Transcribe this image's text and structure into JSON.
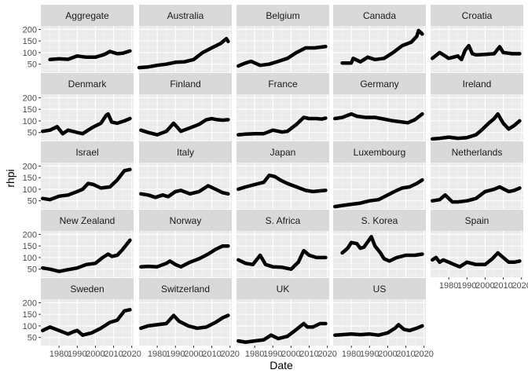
{
  "chart_data": {
    "type": "line",
    "xlabel": "Date",
    "ylabel": "rhpi",
    "xlim": [
      1970,
      2021
    ],
    "ylim": [
      15,
      215
    ],
    "x_ticks": [
      1980,
      1990,
      2000,
      2010,
      2020
    ],
    "x_tick_labels": [
      "1980",
      "1990",
      "2000",
      "2010",
      "2020"
    ],
    "y_ticks": [
      50,
      100,
      150,
      200
    ],
    "y_tick_labels": [
      "50",
      "100",
      "150",
      "200"
    ],
    "facet_layout": {
      "ncol": 5,
      "nrow": 5
    },
    "grid": true,
    "panel_background": "#ebebeb",
    "strip_background": "#d9d9d9",
    "line_color": "#000000",
    "series": [
      {
        "name": "Aggregate",
        "x": [
          1975,
          1980,
          1985,
          1990,
          1995,
          2000,
          2005,
          2008,
          2012,
          2015,
          2019
        ],
        "y": [
          70,
          73,
          71,
          85,
          80,
          80,
          92,
          105,
          95,
          97,
          107
        ]
      },
      {
        "name": "Australia",
        "x": [
          1970,
          1975,
          1980,
          1985,
          1990,
          1995,
          2000,
          2005,
          2010,
          2015,
          2018,
          2019
        ],
        "y": [
          35,
          38,
          45,
          50,
          58,
          60,
          70,
          100,
          120,
          140,
          160,
          148
        ]
      },
      {
        "name": "Belgium",
        "x": [
          1971,
          1975,
          1978,
          1983,
          1988,
          1993,
          1998,
          2003,
          2008,
          2013,
          2018,
          2019
        ],
        "y": [
          42,
          55,
          62,
          45,
          50,
          62,
          75,
          100,
          120,
          120,
          125,
          126
        ]
      },
      {
        "name": "Canada",
        "x": [
          1975,
          1980,
          1981,
          1985,
          1987,
          1989,
          1993,
          1998,
          2003,
          2008,
          2013,
          2016,
          2017,
          2019
        ],
        "y": [
          55,
          55,
          75,
          60,
          70,
          80,
          70,
          75,
          100,
          130,
          145,
          170,
          195,
          180
        ]
      },
      {
        "name": "Croatia",
        "x": [
          1971,
          1975,
          1980,
          1985,
          1987,
          1989,
          1991,
          1993,
          1995,
          2000,
          2005,
          2008,
          2010,
          2015,
          2019
        ],
        "y": [
          75,
          100,
          75,
          85,
          70,
          110,
          130,
          95,
          90,
          92,
          95,
          125,
          100,
          95,
          95
        ]
      },
      {
        "name": "Denmark",
        "x": [
          1971,
          1975,
          1979,
          1982,
          1985,
          1990,
          1993,
          1998,
          2003,
          2006,
          2007,
          2009,
          2012,
          2016,
          2019
        ],
        "y": [
          55,
          60,
          75,
          45,
          60,
          50,
          45,
          70,
          90,
          125,
          130,
          95,
          90,
          100,
          110
        ]
      },
      {
        "name": "Finland",
        "x": [
          1971,
          1975,
          1980,
          1985,
          1989,
          1993,
          1998,
          2003,
          2007,
          2010,
          2013,
          2016,
          2019
        ],
        "y": [
          60,
          50,
          40,
          55,
          90,
          55,
          70,
          85,
          105,
          110,
          105,
          103,
          105
        ]
      },
      {
        "name": "France",
        "x": [
          1971,
          1975,
          1980,
          1985,
          1990,
          1995,
          1998,
          2003,
          2007,
          2010,
          2014,
          2017,
          2019
        ],
        "y": [
          40,
          43,
          45,
          45,
          60,
          52,
          55,
          85,
          115,
          110,
          110,
          108,
          112
        ]
      },
      {
        "name": "Germany",
        "x": [
          1971,
          1975,
          1980,
          1983,
          1988,
          1993,
          1998,
          2003,
          2008,
          2011,
          2015,
          2019
        ],
        "y": [
          110,
          115,
          130,
          120,
          115,
          115,
          108,
          100,
          95,
          92,
          105,
          130
        ]
      },
      {
        "name": "Ireland",
        "x": [
          1971,
          1975,
          1980,
          1985,
          1990,
          1995,
          1998,
          2002,
          2005,
          2007,
          2010,
          2013,
          2016,
          2019
        ],
        "y": [
          22,
          25,
          30,
          25,
          28,
          40,
          60,
          90,
          110,
          130,
          90,
          65,
          80,
          100
        ]
      },
      {
        "name": "Israel",
        "x": [
          1971,
          1975,
          1980,
          1985,
          1990,
          1993,
          1996,
          1999,
          2003,
          2008,
          2012,
          2016,
          2019
        ],
        "y": [
          60,
          55,
          70,
          75,
          90,
          100,
          125,
          120,
          105,
          110,
          140,
          180,
          185
        ]
      },
      {
        "name": "Italy",
        "x": [
          1971,
          1975,
          1979,
          1983,
          1986,
          1990,
          1993,
          1998,
          2003,
          2008,
          2012,
          2016,
          2019
        ],
        "y": [
          80,
          75,
          65,
          75,
          68,
          90,
          95,
          80,
          90,
          115,
          100,
          85,
          80
        ]
      },
      {
        "name": "Japan",
        "x": [
          1971,
          1975,
          1980,
          1985,
          1988,
          1991,
          1994,
          1998,
          2003,
          2008,
          2012,
          2016,
          2019
        ],
        "y": [
          100,
          110,
          120,
          130,
          160,
          155,
          140,
          125,
          110,
          95,
          90,
          93,
          95
        ]
      },
      {
        "name": "Luxembourg",
        "x": [
          1971,
          1975,
          1980,
          1985,
          1990,
          1995,
          2000,
          2005,
          2008,
          2012,
          2016,
          2019
        ],
        "y": [
          25,
          30,
          35,
          40,
          50,
          55,
          75,
          95,
          105,
          110,
          125,
          140
        ]
      },
      {
        "name": "Netherlands",
        "x": [
          1971,
          1975,
          1978,
          1982,
          1985,
          1990,
          1995,
          2000,
          2005,
          2008,
          2013,
          2016,
          2019
        ],
        "y": [
          50,
          55,
          75,
          45,
          45,
          50,
          60,
          90,
          100,
          110,
          90,
          95,
          105
        ]
      },
      {
        "name": "New Zealand",
        "x": [
          1971,
          1975,
          1980,
          1985,
          1990,
          1995,
          2000,
          2004,
          2007,
          2009,
          2012,
          2015,
          2019
        ],
        "y": [
          55,
          50,
          40,
          48,
          55,
          70,
          75,
          100,
          115,
          105,
          110,
          135,
          175
        ]
      },
      {
        "name": "Norway",
        "x": [
          1971,
          1975,
          1980,
          1985,
          1987,
          1990,
          1993,
          1998,
          2003,
          2008,
          2012,
          2016,
          2019
        ],
        "y": [
          60,
          62,
          60,
          75,
          85,
          70,
          60,
          80,
          95,
          115,
          135,
          150,
          150
        ]
      },
      {
        "name": "S. Africa",
        "x": [
          1971,
          1975,
          1979,
          1983,
          1986,
          1990,
          1995,
          2000,
          2004,
          2007,
          2010,
          2014,
          2019
        ],
        "y": [
          90,
          75,
          70,
          110,
          70,
          60,
          58,
          50,
          80,
          130,
          110,
          100,
          100
        ]
      },
      {
        "name": "S. Korea",
        "x": [
          1975,
          1978,
          1980,
          1983,
          1985,
          1987,
          1991,
          1993,
          1996,
          1998,
          2001,
          2005,
          2010,
          2015,
          2019
        ],
        "y": [
          120,
          140,
          165,
          160,
          140,
          145,
          190,
          150,
          120,
          95,
          85,
          100,
          110,
          110,
          115
        ]
      },
      {
        "name": "Spain",
        "x": [
          1971,
          1973,
          1975,
          1977,
          1980,
          1983,
          1986,
          1990,
          1995,
          2000,
          2004,
          2007,
          2010,
          2013,
          2016,
          2019
        ],
        "y": [
          90,
          100,
          80,
          90,
          80,
          70,
          60,
          80,
          70,
          70,
          95,
          120,
          100,
          80,
          80,
          85
        ]
      },
      {
        "name": "Sweden",
        "x": [
          1971,
          1975,
          1980,
          1985,
          1988,
          1990,
          1993,
          1998,
          2003,
          2008,
          2012,
          2016,
          2019
        ],
        "y": [
          80,
          95,
          80,
          65,
          75,
          80,
          60,
          70,
          90,
          115,
          125,
          165,
          170
        ]
      },
      {
        "name": "Switzerland",
        "x": [
          1971,
          1975,
          1980,
          1985,
          1989,
          1992,
          1997,
          2002,
          2007,
          2012,
          2016,
          2019
        ],
        "y": [
          90,
          100,
          105,
          110,
          145,
          120,
          100,
          90,
          95,
          115,
          135,
          145
        ]
      },
      {
        "name": "UK",
        "x": [
          1971,
          1975,
          1980,
          1985,
          1989,
          1993,
          1998,
          2003,
          2007,
          2009,
          2012,
          2016,
          2019
        ],
        "y": [
          35,
          30,
          35,
          40,
          60,
          45,
          55,
          85,
          110,
          95,
          95,
          110,
          110
        ]
      },
      {
        "name": "US",
        "x": [
          1971,
          1975,
          1980,
          1985,
          1990,
          1995,
          2000,
          2004,
          2006,
          2009,
          2012,
          2016,
          2019
        ],
        "y": [
          60,
          62,
          65,
          62,
          65,
          60,
          70,
          90,
          105,
          85,
          80,
          90,
          100
        ]
      }
    ]
  }
}
